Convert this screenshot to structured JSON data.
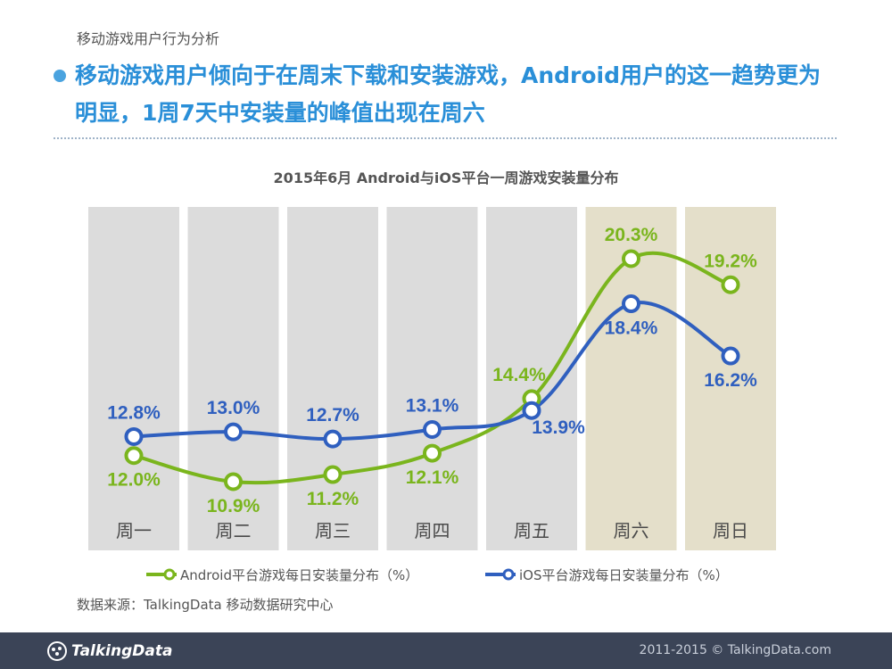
{
  "page": {
    "section_label": "移动游戏用户行为分析",
    "headline": "移动游戏用户倾向于在周末下载和安装游戏，Android用户的这一趋势更为明显，1周7天中安装量的峰值出现在周六",
    "source": "数据来源：TalkingData 移动数据研究中心",
    "footer_logo": "TalkingData",
    "footer_copyright": "2011-2015 © TalkingData.com"
  },
  "colors": {
    "android": "#7ab51d",
    "ios": "#2f5fbf",
    "weekday_band": "#dcdcdc",
    "weekend_band": "#e4dfca",
    "title_blue": "#2a8fd8",
    "day_label": "#4a4a4a"
  },
  "chart_data": {
    "type": "line",
    "title": "2015年6月 Android与iOS平台一周游戏安装量分布",
    "categories": [
      "周一",
      "周二",
      "周三",
      "周四",
      "周五",
      "周六",
      "周日"
    ],
    "weekend": [
      false,
      false,
      false,
      false,
      false,
      true,
      true
    ],
    "unit": "%",
    "series": [
      {
        "key": "android",
        "name": "Android平台游戏每日安装量分布（%）",
        "values": [
          12.0,
          10.9,
          11.2,
          12.1,
          14.4,
          20.3,
          19.2
        ],
        "labels": [
          "12.0%",
          "10.9%",
          "11.2%",
          "12.1%",
          "14.4%",
          "20.3%",
          "19.2%"
        ]
      },
      {
        "key": "ios",
        "name": "iOS平台游戏每日安装量分布（%）",
        "values": [
          12.8,
          13.0,
          12.7,
          13.1,
          13.9,
          18.4,
          16.2
        ],
        "labels": [
          "12.8%",
          "13.0%",
          "12.7%",
          "13.1%",
          "13.9%",
          "18.4%",
          "16.2%"
        ]
      }
    ],
    "grid": false,
    "legend_position": "bottom"
  }
}
